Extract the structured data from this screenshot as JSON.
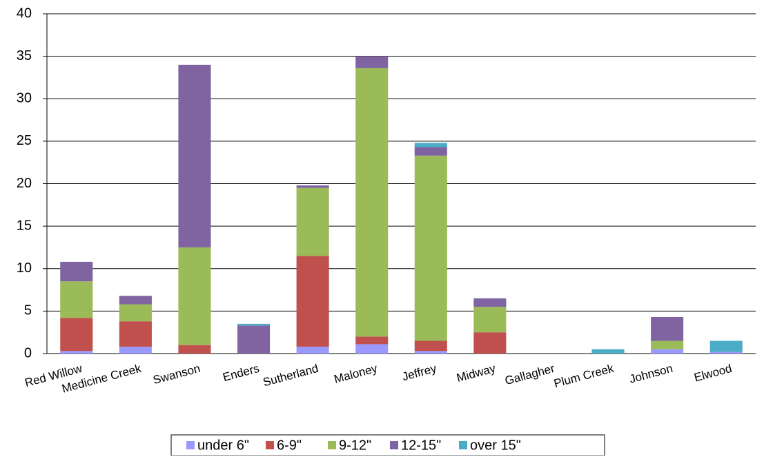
{
  "chart_data": {
    "type": "stacked-bar",
    "categories": [
      "Red Willow",
      "Medicine Creek",
      "Swanson",
      "Enders",
      "Sutherland",
      "Maloney",
      "Jeffrey",
      "Midway",
      "Gallagher",
      "Plum Creek",
      "Johnson",
      "Elwood"
    ],
    "series": [
      {
        "name": "under 6\"",
        "color": "#9999ff",
        "values": [
          0.3,
          0.8,
          0,
          0,
          0.8,
          1.1,
          0.3,
          0,
          0,
          0,
          0.5,
          0.2
        ]
      },
      {
        "name": "6-9\"",
        "color": "#c0504d",
        "values": [
          3.9,
          3.0,
          1.0,
          0,
          10.7,
          0.9,
          1.2,
          2.5,
          0,
          0,
          0,
          0
        ]
      },
      {
        "name": "9-12\"",
        "color": "#9bbb59",
        "values": [
          4.3,
          2.0,
          11.5,
          0,
          8.0,
          31.6,
          21.8,
          3.0,
          0,
          0,
          1.0,
          0
        ]
      },
      {
        "name": "12-15\"",
        "color": "#8064a2",
        "values": [
          2.3,
          1.0,
          21.5,
          3.3,
          0.3,
          1.4,
          1.0,
          1.0,
          0,
          0,
          2.8,
          0
        ]
      },
      {
        "name": "over 15\"",
        "color": "#4bacc6",
        "values": [
          0,
          0,
          0,
          0.2,
          0,
          0,
          0.5,
          0,
          0,
          0.5,
          0,
          1.3
        ]
      }
    ],
    "ylim": [
      0,
      40
    ],
    "yticks": [
      0,
      5,
      10,
      15,
      20,
      25,
      30,
      35,
      40
    ],
    "grid": true,
    "legend": "bottom"
  }
}
